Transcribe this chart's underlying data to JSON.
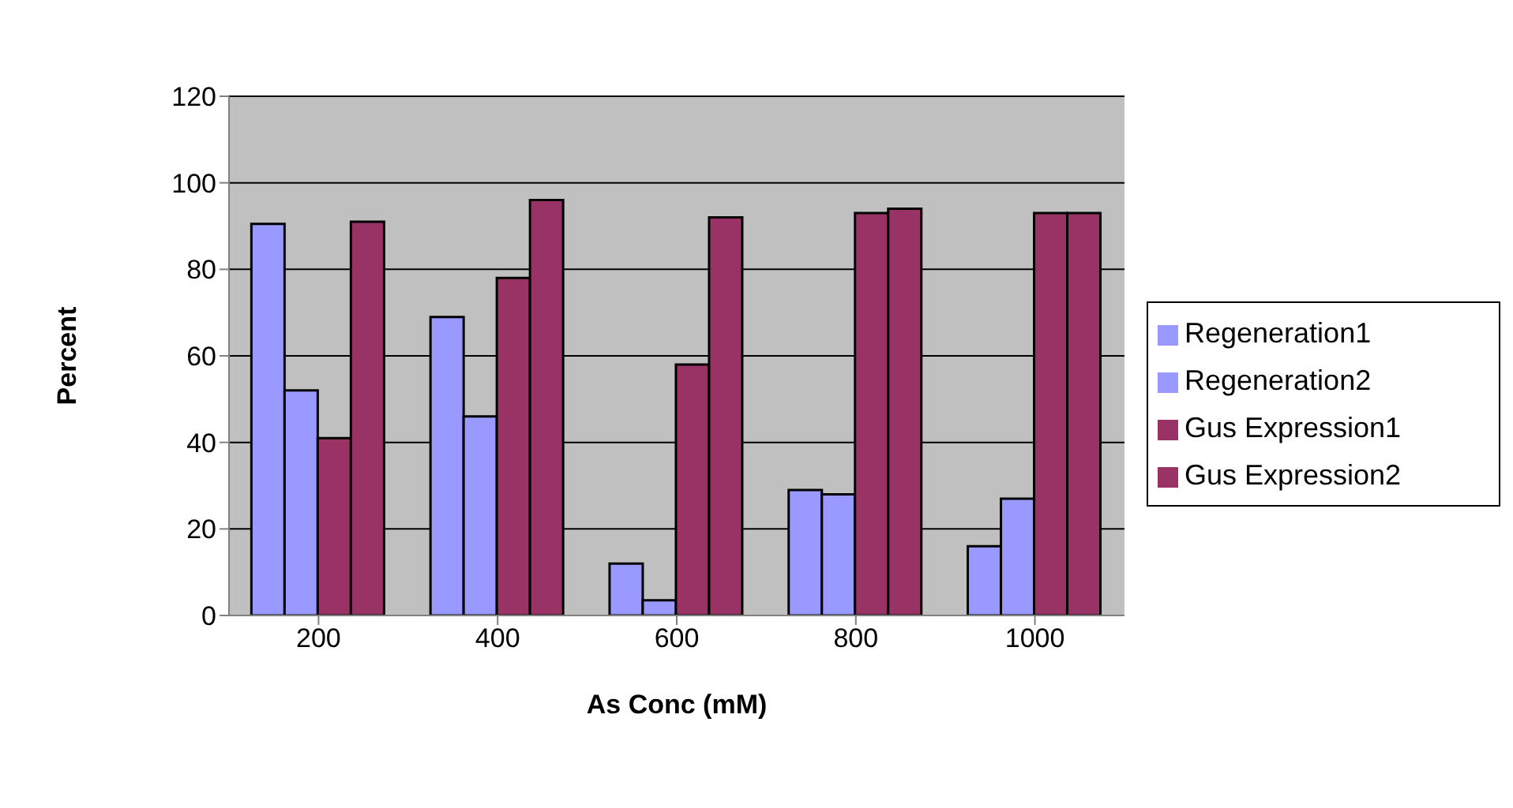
{
  "chart_data": {
    "type": "bar",
    "xlabel": "As Conc (mM)",
    "ylabel": "Percent",
    "categories": [
      "200",
      "400",
      "600",
      "800",
      "1000"
    ],
    "series": [
      {
        "name": "Regeneration1",
        "color": "#9999ff",
        "values": [
          90.5,
          69,
          12,
          29,
          16
        ]
      },
      {
        "name": "Regeneration2",
        "color": "#9999ff",
        "values": [
          52,
          46,
          3.5,
          28,
          27
        ]
      },
      {
        "name": "Gus Expression1",
        "color": "#993366",
        "values": [
          41,
          78,
          58,
          93,
          93
        ]
      },
      {
        "name": "Gus Expression2",
        "color": "#993366",
        "values": [
          91,
          96,
          92,
          94,
          93
        ]
      }
    ],
    "ylim": [
      0,
      120
    ],
    "yticks": [
      0,
      20,
      40,
      60,
      80,
      100,
      120
    ],
    "grid": "y",
    "legend": "right"
  }
}
